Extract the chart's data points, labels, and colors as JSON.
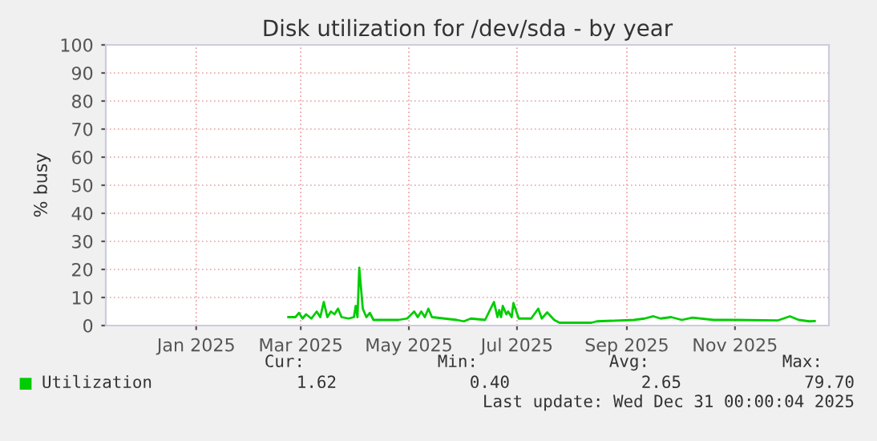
{
  "chart_data": {
    "type": "line",
    "title": "Disk utilization for /dev/sda - by year",
    "ylabel": "% busy",
    "xlim": [
      "2024-11-26",
      "2026-01-08"
    ],
    "ylim": [
      0,
      100
    ],
    "xticks": [
      {
        "value": "2025-01-16",
        "label": "Jan 2025"
      },
      {
        "value": "2025-03-16",
        "label": "Mar 2025"
      },
      {
        "value": "2025-05-16",
        "label": "May 2025"
      },
      {
        "value": "2025-07-16",
        "label": "Jul 2025"
      },
      {
        "value": "2025-09-16",
        "label": "Sep 2025"
      },
      {
        "value": "2025-11-16",
        "label": "Nov 2025"
      }
    ],
    "yticks": [
      0,
      10,
      20,
      30,
      40,
      50,
      60,
      70,
      80,
      90,
      100
    ],
    "grid": true,
    "legend": "bottom",
    "series": [
      {
        "name": "Utilization",
        "color": "#00cc00",
        "x": [
          "2025-03-09",
          "2025-03-13",
          "2025-03-15",
          "2025-03-17",
          "2025-03-19",
          "2025-03-22",
          "2025-03-25",
          "2025-03-27",
          "2025-03-29",
          "2025-03-31",
          "2025-04-02",
          "2025-04-04",
          "2025-04-06",
          "2025-04-08",
          "2025-04-12",
          "2025-04-15",
          "2025-04-16",
          "2025-04-17",
          "2025-04-18",
          "2025-04-20",
          "2025-04-22",
          "2025-04-24",
          "2025-04-26",
          "2025-05-10",
          "2025-05-15",
          "2025-05-19",
          "2025-05-21",
          "2025-05-23",
          "2025-05-25",
          "2025-05-27",
          "2025-05-29",
          "2025-06-05",
          "2025-06-12",
          "2025-06-16",
          "2025-06-20",
          "2025-06-28",
          "2025-07-03",
          "2025-07-05",
          "2025-07-06",
          "2025-07-07",
          "2025-07-08",
          "2025-07-10",
          "2025-07-11",
          "2025-07-13",
          "2025-07-14",
          "2025-07-17",
          "2025-07-24",
          "2025-07-28",
          "2025-07-30",
          "2025-08-02",
          "2025-08-06",
          "2025-08-09",
          "2025-08-27",
          "2025-08-30",
          "2025-09-20",
          "2025-09-26",
          "2025-10-01",
          "2025-10-05",
          "2025-10-11",
          "2025-10-17",
          "2025-10-23",
          "2025-11-04",
          "2025-11-16",
          "2025-12-10",
          "2025-12-17",
          "2025-12-22",
          "2025-12-28",
          "2025-12-31"
        ],
        "values": [
          3,
          3,
          4.5,
          2.5,
          4,
          2.5,
          5,
          3,
          8.4,
          3,
          5,
          4,
          6,
          3,
          2.5,
          3,
          7,
          3,
          20.6,
          6,
          3,
          4.5,
          2,
          2,
          2.5,
          5,
          3,
          5,
          3,
          6,
          3,
          2.5,
          2,
          1.5,
          2.5,
          2,
          8.4,
          3,
          5.5,
          3,
          7,
          4,
          5,
          3,
          8,
          2.5,
          2.5,
          6,
          2.5,
          4.7,
          2,
          1,
          1,
          1.5,
          2,
          2.5,
          3.3,
          2.5,
          3,
          2,
          2.8,
          2,
          2,
          1.8,
          3.3,
          2,
          1.5,
          1.6
        ]
      }
    ],
    "annotations": [
      "Cur:",
      "Min:",
      "Avg:",
      "Max:",
      "1.62",
      "0.40",
      "2.65",
      "79.70",
      "Last update: Wed Dec 31 00:00:04 2025"
    ]
  }
}
